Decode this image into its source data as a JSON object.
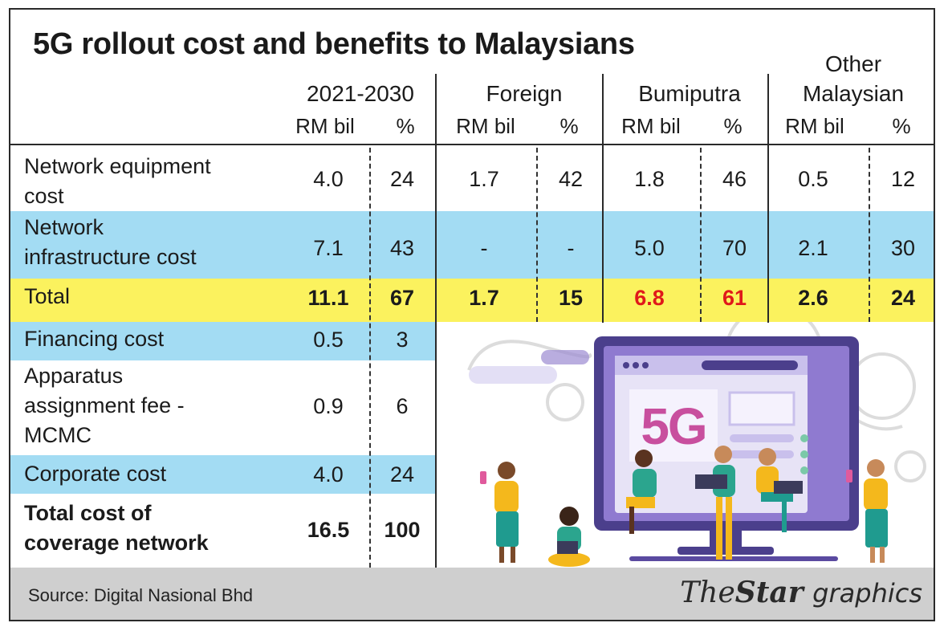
{
  "title": "5G rollout cost and benefits to Malaysians",
  "chart_data": {
    "type": "table",
    "title": "5G rollout cost and benefits to Malaysians",
    "column_groups": [
      {
        "name": "2021-2030",
        "sub": [
          "RM bil",
          "%"
        ]
      },
      {
        "name": "Foreign",
        "sub": [
          "RM bil",
          "%"
        ]
      },
      {
        "name": "Bumiputra",
        "sub": [
          "RM bil",
          "%"
        ]
      },
      {
        "name_line1": "Other",
        "name_line2": "Malaysian",
        "sub": [
          "RM bil",
          "%"
        ]
      }
    ],
    "rows": [
      {
        "label": [
          "Network equipment",
          "cost"
        ],
        "values": [
          "4.0",
          "24",
          "1.7",
          "42",
          "1.8",
          "46",
          "0.5",
          "12"
        ]
      },
      {
        "label": [
          "Network",
          "infrastructure cost"
        ],
        "values": [
          "7.1",
          "43",
          "-",
          "-",
          "5.0",
          "70",
          "2.1",
          "30"
        ]
      },
      {
        "label": [
          "Total"
        ],
        "values": [
          "11.1",
          "67",
          "1.7",
          "15",
          "6.8",
          "61",
          "2.6",
          "24"
        ]
      },
      {
        "label": [
          "Financing cost"
        ],
        "values": [
          "0.5",
          "3"
        ]
      },
      {
        "label": [
          "Apparatus",
          "assignment fee -",
          "MCMC"
        ],
        "values": [
          "0.9",
          "6"
        ]
      },
      {
        "label": [
          "Corporate cost"
        ],
        "values": [
          "4.0",
          "24"
        ]
      },
      {
        "label": [
          "Total cost of",
          "coverage network"
        ],
        "values": [
          "16.5",
          "100"
        ]
      }
    ]
  },
  "illustration": {
    "screen_text": "5G"
  },
  "footer": {
    "source": "Source: Digital Nasional Bhd",
    "brand_the": "The",
    "brand_star": "Star",
    "brand_graphics": "graphics"
  },
  "colors": {
    "blue_row": "#a3dcf3",
    "yellow_row": "#fbf25e",
    "footer_gray": "#cfcfcf",
    "highlight_red": "#e0191a"
  }
}
